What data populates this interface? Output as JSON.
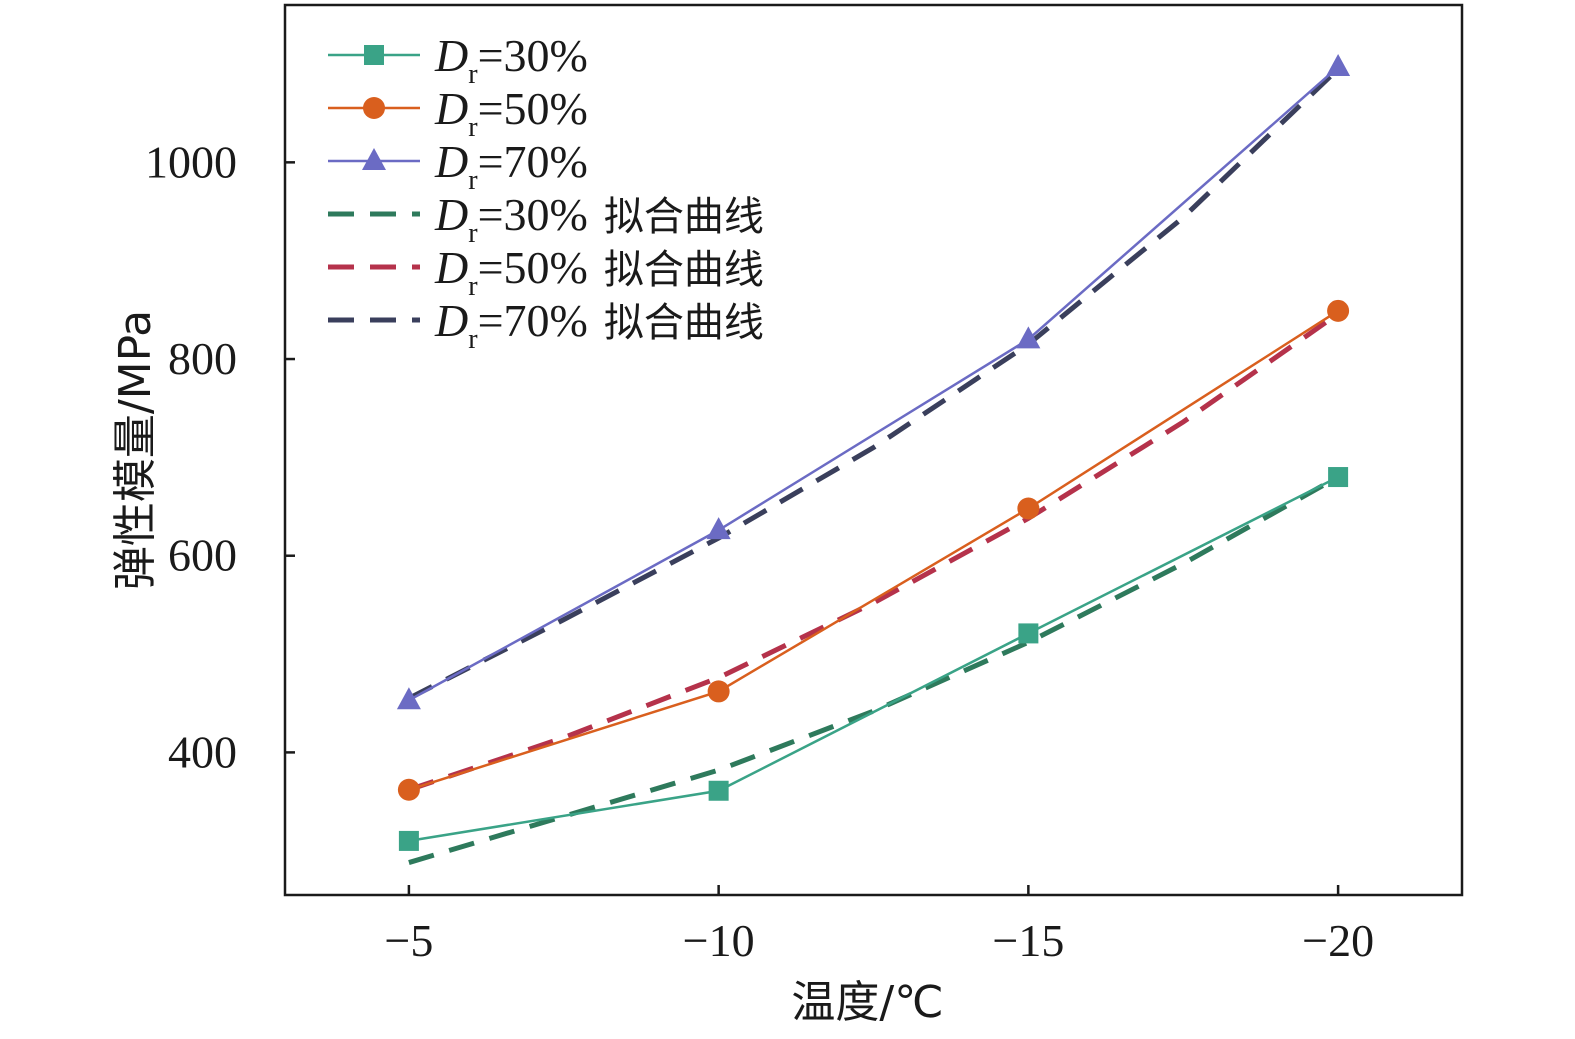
{
  "chart_data": {
    "type": "line",
    "xlabel": "温度/℃",
    "ylabel": "弹性模量/MPa",
    "x": [
      -5,
      -10,
      -15,
      -20
    ],
    "x_tick_labels": [
      "−5",
      "−10",
      "−15",
      "−20"
    ],
    "xlim": [
      -3,
      -22
    ],
    "y_ticks": [
      400,
      600,
      800,
      1000
    ],
    "ylim": [
      255,
      1160
    ],
    "grid": false,
    "legend_position": "top-left",
    "series": [
      {
        "name": "Dr=30%",
        "legend_base": "D",
        "legend_sub": "r",
        "legend_rest": "=30%",
        "legend_suffix": "",
        "values": [
          310,
          361,
          521,
          680
        ],
        "color": "#3aa387",
        "marker": "square",
        "style": "solid"
      },
      {
        "name": "Dr=50%",
        "legend_base": "D",
        "legend_sub": "r",
        "legend_rest": "=50%",
        "legend_suffix": "",
        "values": [
          362,
          462,
          648,
          849
        ],
        "color": "#d95f1e",
        "marker": "circle",
        "style": "solid"
      },
      {
        "name": "Dr=70%",
        "legend_base": "D",
        "legend_sub": "r",
        "legend_rest": "=70%",
        "legend_suffix": "",
        "values": [
          453,
          626,
          820,
          1097
        ],
        "color": "#6b6bc4",
        "marker": "triangle",
        "style": "solid"
      },
      {
        "name": "Dr=30% 拟合曲线",
        "legend_base": "D",
        "legend_sub": "r",
        "legend_rest": "=30%",
        "legend_suffix": "拟合曲线",
        "x": [
          -5,
          -7.5,
          -10,
          -12.5,
          -15,
          -17.5,
          -20
        ],
        "values": [
          288,
          335,
          382,
          442,
          512,
          592,
          680
        ],
        "color": "#2e7a5c",
        "marker": "none",
        "style": "dashed"
      },
      {
        "name": "Dr=50% 拟合曲线",
        "legend_base": "D",
        "legend_sub": "r",
        "legend_rest": "=50%",
        "legend_suffix": "拟合曲线",
        "x": [
          -5,
          -7.5,
          -10,
          -12.5,
          -15,
          -17.5,
          -20
        ],
        "values": [
          362,
          415,
          476,
          552,
          638,
          736,
          846
        ],
        "color": "#b5324b",
        "marker": "none",
        "style": "dashed"
      },
      {
        "name": "Dr=70% 拟合曲线",
        "legend_base": "D",
        "legend_sub": "r",
        "legend_rest": "=70%",
        "legend_suffix": "拟合曲线",
        "x": [
          -5,
          -7.5,
          -10,
          -12.5,
          -15,
          -17.5,
          -20
        ],
        "values": [
          455,
          535,
          618,
          710,
          815,
          944,
          1095
        ],
        "color": "#3a3f5c",
        "marker": "none",
        "style": "dashed"
      }
    ]
  }
}
